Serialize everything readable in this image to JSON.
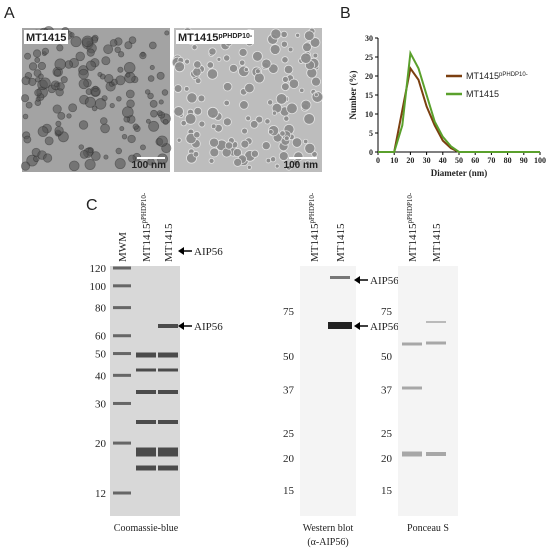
{
  "panel_labels": [
    "A",
    "B",
    "C"
  ],
  "micrographs": [
    {
      "label": "MT1415",
      "scale": "100 nm"
    },
    {
      "label": "MT1415",
      "superscript": "pPHDP10-",
      "scale": "100 nm"
    }
  ],
  "chart_data": {
    "type": "line",
    "xlabel": "Diameter (nm)",
    "ylabel": "Number (%)",
    "x": [
      0,
      5,
      10,
      15,
      20,
      25,
      30,
      35,
      40,
      45,
      50,
      55,
      60,
      65,
      70,
      75,
      80,
      85,
      90,
      95,
      100
    ],
    "series": [
      {
        "name": "MT1415",
        "superscript": "pPHDP10-",
        "color": "#7b3f10",
        "values": [
          0,
          0,
          0,
          11,
          22,
          19,
          12,
          7,
          3,
          1,
          0,
          0,
          0,
          0,
          0,
          0,
          0,
          0,
          0,
          0,
          0
        ]
      },
      {
        "name": "MT1415",
        "color": "#5aa02c",
        "values": [
          0,
          0,
          0,
          7,
          26,
          22,
          15,
          8,
          4,
          1.5,
          0,
          0,
          0,
          0,
          0,
          0,
          0,
          0,
          0,
          0,
          0
        ]
      }
    ],
    "xlim": [
      0,
      100
    ],
    "xticks": [
      0,
      10,
      20,
      30,
      40,
      50,
      60,
      70,
      80,
      90,
      100
    ],
    "ylim": [
      0,
      30
    ],
    "yticks": [
      0,
      5,
      10,
      15,
      20,
      25,
      30
    ]
  },
  "gels": [
    {
      "lanes": [
        {
          "label": "MWM"
        },
        {
          "label": "MT1415",
          "superscript": "pPHDP10-"
        },
        {
          "label": "MT1415"
        }
      ],
      "markers": [
        120,
        100,
        80,
        60,
        50,
        40,
        30,
        20,
        12
      ],
      "arrows": [
        "AIP56",
        "AIP56"
      ],
      "caption": [
        "Coomassie-blue"
      ]
    },
    {
      "lanes": [
        {
          "label": "MT1415",
          "superscript": "pPHDP10-"
        },
        {
          "label": "MT1415"
        }
      ],
      "markers": [
        75,
        50,
        37,
        25,
        20,
        15
      ],
      "arrows": [
        "AIP56",
        "AIP56"
      ],
      "caption": [
        "Western blot",
        "(α-AIP56)"
      ]
    },
    {
      "lanes": [
        {
          "label": "MT1415",
          "superscript": "pPHDP10-"
        },
        {
          "label": "MT1415"
        }
      ],
      "markers": [
        75,
        50,
        37,
        25,
        20,
        15
      ],
      "caption": [
        "Ponceau S"
      ]
    }
  ]
}
